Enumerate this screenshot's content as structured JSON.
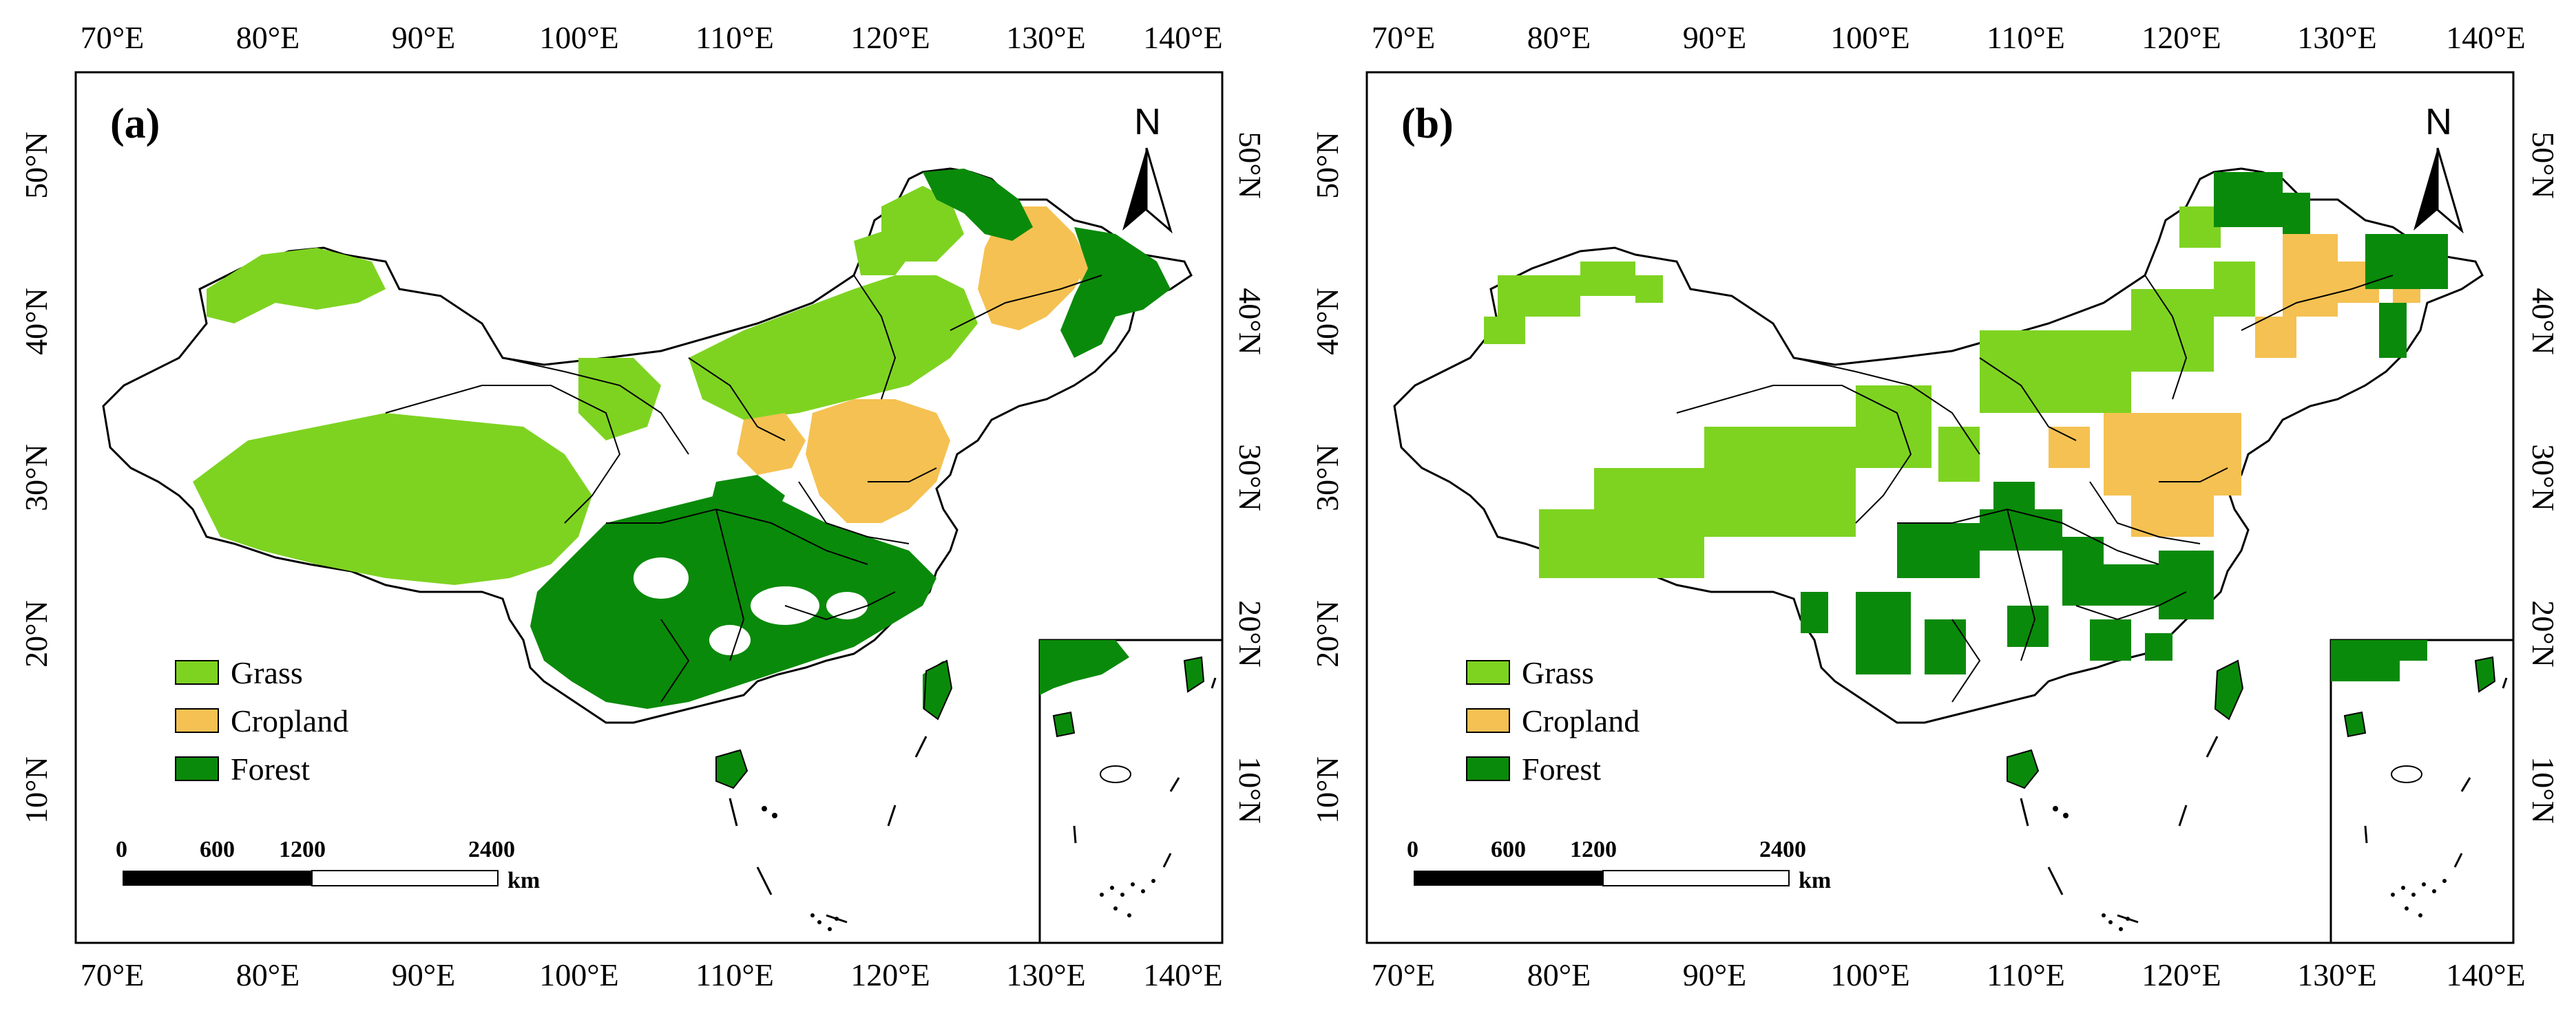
{
  "figure": {
    "panels": [
      {
        "id": "a",
        "label": "(a)",
        "lon_ticks": [
          "70°E",
          "80°E",
          "90°E",
          "100°E",
          "110°E",
          "120°E",
          "130°E",
          "140°E"
        ],
        "lat_ticks": [
          "50°N",
          "40°N",
          "30°N",
          "20°N",
          "10°N"
        ],
        "legend": [
          {
            "label": "Grass",
            "color": "#7ed321"
          },
          {
            "label": "Cropland",
            "color": "#f5c152"
          },
          {
            "label": "Forest",
            "color": "#0a8a0a"
          }
        ],
        "scale_bar": {
          "labels": [
            "0",
            "600",
            "1200",
            "2400"
          ],
          "unit": "km"
        },
        "north_label": "N"
      },
      {
        "id": "b",
        "label": "(b)",
        "lon_ticks": [
          "70°E",
          "80°E",
          "90°E",
          "100°E",
          "110°E",
          "120°E",
          "130°E",
          "140°E"
        ],
        "lat_ticks": [
          "50°N",
          "40°N",
          "30°N",
          "20°N",
          "10°N"
        ],
        "legend": [
          {
            "label": "Grass",
            "color": "#7ed321"
          },
          {
            "label": "Cropland",
            "color": "#f5c152"
          },
          {
            "label": "Forest",
            "color": "#0a8a0a"
          }
        ],
        "scale_bar": {
          "labels": [
            "0",
            "600",
            "1200",
            "2400"
          ],
          "unit": "km"
        },
        "north_label": "N"
      }
    ]
  }
}
